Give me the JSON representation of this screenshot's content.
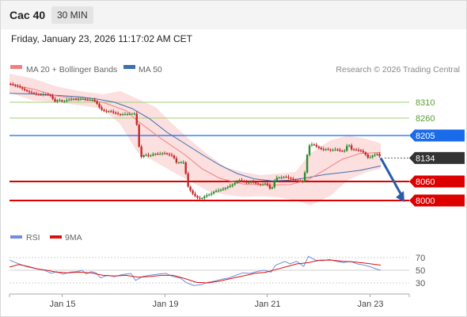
{
  "header": {
    "symbol": "Cac 40",
    "timeframe": "30 MIN"
  },
  "datetime": "Friday, January 23, 2026 11:17:02 AM CET",
  "legend": {
    "bb_label": "MA 20 + Bollinger Bands",
    "ma50_label": "MA 50",
    "copyright": "Research © 2026 Trading Central"
  },
  "rsi_legend": {
    "rsi_label": "RSI",
    "ma_label": "9MA"
  },
  "colors": {
    "price_line": "#1a6bea",
    "support_line": "#dd0000",
    "resistance_line": "#9fd27a",
    "current_price": "#333333",
    "candle_up": "#2e8b2e",
    "candle_down": "#c62828",
    "ma20": "#f08080",
    "ma50": "#3f6fb0",
    "bands_fill": "#fbd2d2",
    "rsi": "#6d8fdc",
    "rsi_ma": "#dd1111",
    "arrow": "#2a5caa"
  },
  "chart_data": {
    "type": "candlestick",
    "y_range": [
      7955,
      8390
    ],
    "x_ticks": [
      "Jan 15",
      "Jan 19",
      "Jan 21",
      "Jan 23"
    ],
    "levels": [
      {
        "label": "8310",
        "value": 8310,
        "kind": "resistance"
      },
      {
        "label": "8260",
        "value": 8260,
        "kind": "resistance"
      },
      {
        "label": "8205",
        "value": 8205,
        "kind": "pivot"
      },
      {
        "label": "8134",
        "value": 8134,
        "kind": "current"
      },
      {
        "label": "8060",
        "value": 8060,
        "kind": "support"
      },
      {
        "label": "8000",
        "value": 8000,
        "kind": "support"
      }
    ],
    "forecast_arrow": {
      "from": 8134,
      "to": 8000
    },
    "rsi_axis": {
      "ticks": [
        "70",
        "50",
        "30"
      ],
      "range": [
        20,
        85
      ]
    },
    "price_path": [
      [
        0,
        8368
      ],
      [
        3,
        8365
      ],
      [
        6,
        8361
      ],
      [
        10,
        8355
      ],
      [
        14,
        8346
      ],
      [
        18,
        8340
      ],
      [
        22,
        8337
      ],
      [
        26,
        8333
      ],
      [
        30,
        8335
      ],
      [
        34,
        8332
      ],
      [
        36,
        8331
      ],
      [
        38,
        8310
      ],
      [
        42,
        8318
      ],
      [
        46,
        8311
      ],
      [
        50,
        8318
      ],
      [
        54,
        8320
      ],
      [
        58,
        8318
      ],
      [
        62,
        8322
      ],
      [
        66,
        8318
      ],
      [
        70,
        8318
      ],
      [
        72,
        8318
      ],
      [
        74,
        8310
      ],
      [
        78,
        8288
      ],
      [
        82,
        8280
      ],
      [
        86,
        8282
      ],
      [
        90,
        8276
      ],
      [
        94,
        8271
      ],
      [
        98,
        8272
      ],
      [
        102,
        8273
      ],
      [
        106,
        8274
      ],
      [
        108,
        8274
      ],
      [
        112,
        8135
      ],
      [
        116,
        8145
      ],
      [
        120,
        8140
      ],
      [
        124,
        8148
      ],
      [
        128,
        8146
      ],
      [
        132,
        8150
      ],
      [
        136,
        8145
      ],
      [
        140,
        8140
      ],
      [
        143,
        8120
      ],
      [
        150,
        8120
      ],
      [
        152,
        8050
      ],
      [
        156,
        8025
      ],
      [
        160,
        8010
      ],
      [
        164,
        8005
      ],
      [
        168,
        8015
      ],
      [
        172,
        8020
      ],
      [
        176,
        8030
      ],
      [
        180,
        8032
      ],
      [
        184,
        8038
      ],
      [
        188,
        8044
      ],
      [
        192,
        8052
      ],
      [
        196,
        8065
      ],
      [
        200,
        8060
      ],
      [
        204,
        8055
      ],
      [
        208,
        8060
      ],
      [
        212,
        8052
      ],
      [
        216,
        8050
      ],
      [
        220,
        8055
      ],
      [
        224,
        8032
      ],
      [
        228,
        8072
      ],
      [
        232,
        8072
      ],
      [
        236,
        8075
      ],
      [
        240,
        8070
      ],
      [
        244,
        8064
      ],
      [
        252,
        8060
      ],
      [
        256,
        8172
      ],
      [
        260,
        8178
      ],
      [
        264,
        8168
      ],
      [
        268,
        8160
      ],
      [
        272,
        8162
      ],
      [
        276,
        8158
      ],
      [
        280,
        8162
      ],
      [
        284,
        8155
      ],
      [
        288,
        8158
      ],
      [
        290,
        8185
      ],
      [
        292,
        8162
      ],
      [
        296,
        8160
      ],
      [
        300,
        8158
      ],
      [
        304,
        8150
      ],
      [
        308,
        8130
      ],
      [
        310,
        8143
      ],
      [
        312,
        8140
      ],
      [
        314,
        8148
      ],
      [
        316,
        8146
      ],
      [
        318,
        8134
      ]
    ],
    "ma20": [
      [
        0,
        8366
      ],
      [
        20,
        8352
      ],
      [
        40,
        8330
      ],
      [
        60,
        8320
      ],
      [
        80,
        8310
      ],
      [
        100,
        8283
      ],
      [
        110,
        8250
      ],
      [
        130,
        8195
      ],
      [
        150,
        8145
      ],
      [
        165,
        8100
      ],
      [
        180,
        8070
      ],
      [
        200,
        8052
      ],
      [
        220,
        8049
      ],
      [
        240,
        8050
      ],
      [
        255,
        8064
      ],
      [
        270,
        8096
      ],
      [
        285,
        8130
      ],
      [
        300,
        8148
      ],
      [
        318,
        8152
      ]
    ],
    "bands_upper": [
      [
        0,
        8400
      ],
      [
        20,
        8385
      ],
      [
        40,
        8360
      ],
      [
        60,
        8345
      ],
      [
        80,
        8335
      ],
      [
        95,
        8345
      ],
      [
        110,
        8320
      ],
      [
        125,
        8295
      ],
      [
        140,
        8240
      ],
      [
        155,
        8190
      ],
      [
        170,
        8145
      ],
      [
        185,
        8105
      ],
      [
        200,
        8090
      ],
      [
        215,
        8080
      ],
      [
        230,
        8085
      ],
      [
        245,
        8090
      ],
      [
        258,
        8150
      ],
      [
        275,
        8190
      ],
      [
        290,
        8205
      ],
      [
        305,
        8195
      ],
      [
        318,
        8180
      ]
    ],
    "bands_lower": [
      [
        318,
        8100
      ],
      [
        305,
        8088
      ],
      [
        290,
        8065
      ],
      [
        275,
        8015
      ],
      [
        258,
        7985
      ],
      [
        245,
        8000
      ],
      [
        230,
        8010
      ],
      [
        215,
        8014
      ],
      [
        200,
        8012
      ],
      [
        185,
        8018
      ],
      [
        170,
        8030
      ],
      [
        155,
        8060
      ],
      [
        140,
        8090
      ],
      [
        125,
        8122
      ],
      [
        110,
        8150
      ],
      [
        95,
        8240
      ],
      [
        80,
        8290
      ],
      [
        60,
        8300
      ],
      [
        40,
        8310
      ],
      [
        20,
        8316
      ],
      [
        0,
        8340
      ]
    ],
    "ma50": [
      [
        0,
        8338
      ],
      [
        20,
        8336
      ],
      [
        40,
        8332
      ],
      [
        60,
        8327
      ],
      [
        75,
        8320
      ],
      [
        90,
        8310
      ],
      [
        105,
        8290
      ],
      [
        120,
        8258
      ],
      [
        135,
        8215
      ],
      [
        150,
        8180
      ],
      [
        165,
        8145
      ],
      [
        180,
        8112
      ],
      [
        195,
        8085
      ],
      [
        210,
        8068
      ],
      [
        225,
        8062
      ],
      [
        240,
        8064
      ],
      [
        255,
        8072
      ],
      [
        270,
        8082
      ],
      [
        285,
        8088
      ],
      [
        300,
        8095
      ],
      [
        318,
        8109
      ]
    ],
    "rsi": [
      [
        0,
        66
      ],
      [
        8,
        60
      ],
      [
        16,
        55
      ],
      [
        24,
        52
      ],
      [
        30,
        50
      ],
      [
        36,
        45
      ],
      [
        40,
        48
      ],
      [
        46,
        44
      ],
      [
        52,
        47
      ],
      [
        58,
        48
      ],
      [
        62,
        50
      ],
      [
        66,
        44
      ],
      [
        70,
        48
      ],
      [
        74,
        46
      ],
      [
        78,
        38
      ],
      [
        84,
        42
      ],
      [
        90,
        40
      ],
      [
        96,
        43
      ],
      [
        100,
        44
      ],
      [
        104,
        45
      ],
      [
        108,
        34
      ],
      [
        114,
        40
      ],
      [
        120,
        42
      ],
      [
        128,
        44
      ],
      [
        134,
        45
      ],
      [
        140,
        40
      ],
      [
        146,
        38
      ],
      [
        152,
        30
      ],
      [
        158,
        26
      ],
      [
        164,
        27
      ],
      [
        170,
        31
      ],
      [
        176,
        33
      ],
      [
        182,
        36
      ],
      [
        188,
        38
      ],
      [
        194,
        42
      ],
      [
        200,
        46
      ],
      [
        206,
        45
      ],
      [
        212,
        48
      ],
      [
        218,
        50
      ],
      [
        224,
        47
      ],
      [
        228,
        58
      ],
      [
        236,
        64
      ],
      [
        240,
        60
      ],
      [
        246,
        64
      ],
      [
        252,
        56
      ],
      [
        256,
        72
      ],
      [
        262,
        66
      ],
      [
        268,
        65
      ],
      [
        274,
        67
      ],
      [
        280,
        64
      ],
      [
        286,
        62
      ],
      [
        292,
        64
      ],
      [
        298,
        60
      ],
      [
        304,
        58
      ],
      [
        310,
        55
      ],
      [
        314,
        52
      ],
      [
        318,
        50
      ]
    ],
    "rsi_ma": [
      [
        0,
        55
      ],
      [
        8,
        59
      ],
      [
        16,
        56
      ],
      [
        24,
        52
      ],
      [
        32,
        50
      ],
      [
        40,
        47
      ],
      [
        50,
        46
      ],
      [
        60,
        47
      ],
      [
        70,
        46
      ],
      [
        80,
        42
      ],
      [
        90,
        41
      ],
      [
        100,
        42
      ],
      [
        110,
        39
      ],
      [
        120,
        40
      ],
      [
        130,
        42
      ],
      [
        140,
        42
      ],
      [
        150,
        37
      ],
      [
        160,
        31
      ],
      [
        170,
        30
      ],
      [
        180,
        33
      ],
      [
        190,
        37
      ],
      [
        200,
        41
      ],
      [
        210,
        45
      ],
      [
        220,
        47
      ],
      [
        228,
        51
      ],
      [
        236,
        55
      ],
      [
        246,
        60
      ],
      [
        256,
        62
      ],
      [
        266,
        66
      ],
      [
        276,
        66
      ],
      [
        286,
        64
      ],
      [
        296,
        63
      ],
      [
        306,
        61
      ],
      [
        318,
        58
      ]
    ]
  }
}
